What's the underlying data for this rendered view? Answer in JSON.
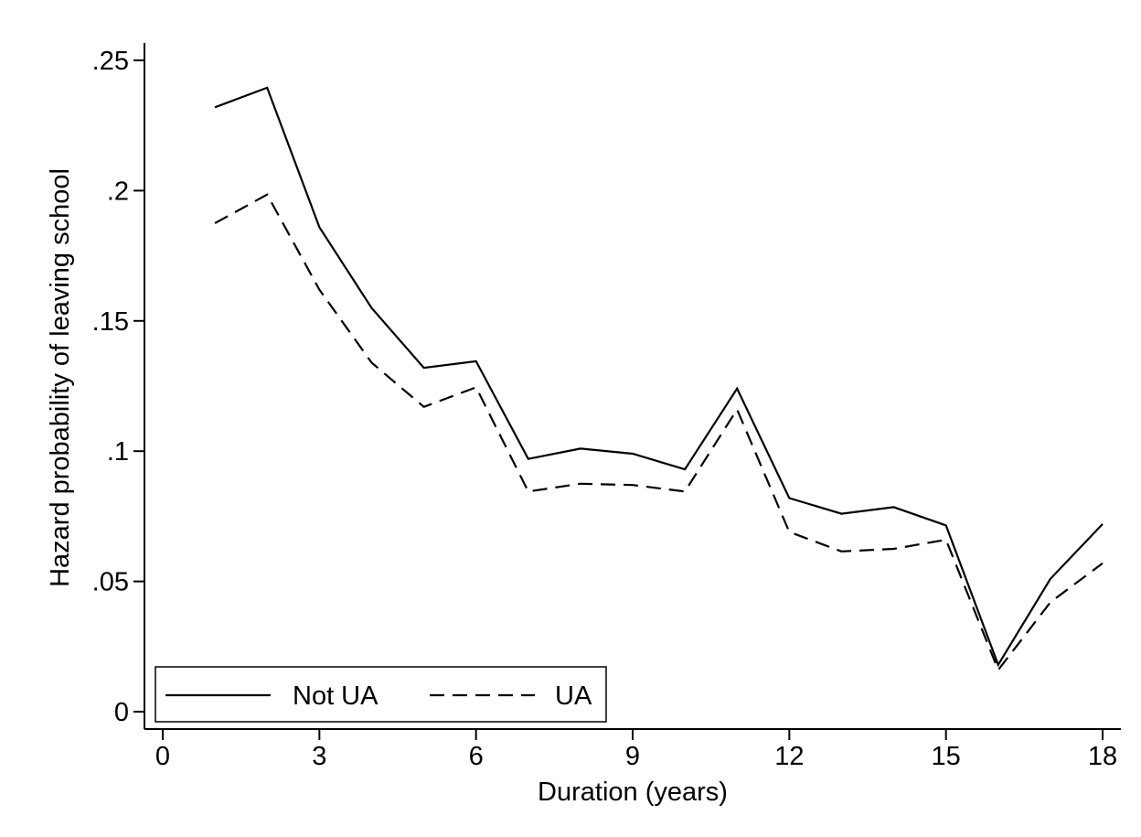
{
  "chart_data": {
    "type": "line",
    "title": "",
    "xlabel": "Duration (years)",
    "ylabel": "Hazard probability of leaving school",
    "xlim": [
      0,
      18
    ],
    "ylim": [
      0,
      0.25
    ],
    "x_ticks": [
      0,
      3,
      6,
      9,
      12,
      15,
      18
    ],
    "x_tick_labels": [
      "0",
      "3",
      "6",
      "9",
      "12",
      "15",
      "18"
    ],
    "y_ticks": [
      0,
      0.05,
      0.1,
      0.15,
      0.2,
      0.25
    ],
    "y_tick_labels": [
      "0",
      ".05",
      ".1",
      ".15",
      ".2",
      ".25"
    ],
    "grid": false,
    "legend_position": "bottom-left",
    "x": [
      1,
      2,
      3,
      4,
      5,
      6,
      7,
      8,
      9,
      10,
      11,
      12,
      13,
      14,
      15,
      16,
      17,
      18
    ],
    "series": [
      {
        "name": "Not UA",
        "style": "solid",
        "color": "#000000",
        "values": [
          0.232,
          0.2395,
          0.186,
          0.155,
          0.132,
          0.1345,
          0.097,
          0.101,
          0.099,
          0.093,
          0.124,
          0.082,
          0.076,
          0.0785,
          0.0715,
          0.018,
          0.051,
          0.072
        ]
      },
      {
        "name": "UA",
        "style": "dashed",
        "color": "#000000",
        "values": [
          0.1875,
          0.1985,
          0.162,
          0.134,
          0.117,
          0.1245,
          0.0845,
          0.0875,
          0.087,
          0.0845,
          0.116,
          0.069,
          0.0615,
          0.0625,
          0.066,
          0.016,
          0.042,
          0.057
        ]
      }
    ]
  }
}
